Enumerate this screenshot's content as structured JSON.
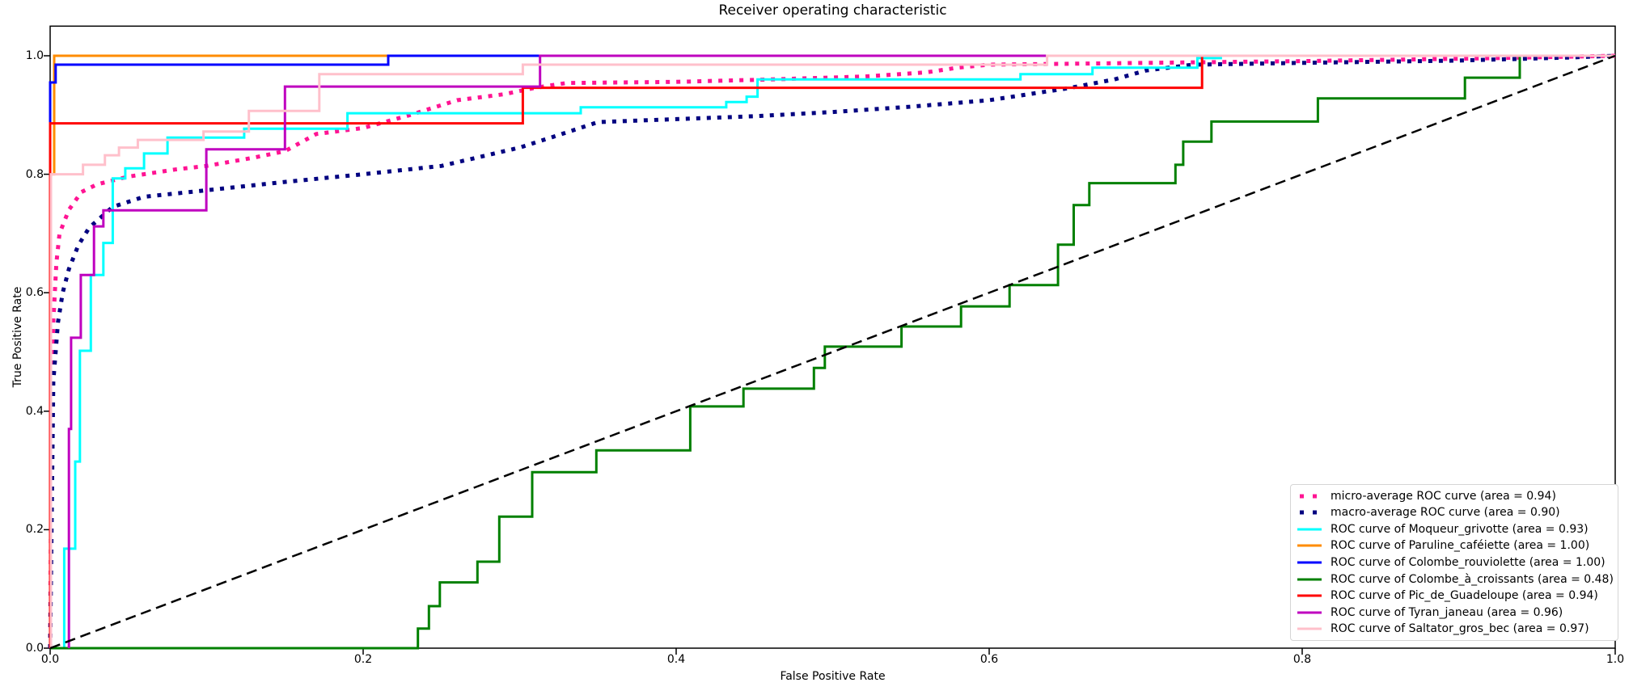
{
  "title": "Receiver operating characteristic",
  "axes": {
    "xlabel": "False Positive Rate",
    "ylabel": "True Positive Rate",
    "x_tick_labels": [
      "0.0",
      "0.2",
      "0.4",
      "0.6",
      "0.8",
      "1.0"
    ],
    "y_tick_labels": [
      "0.0",
      "0.2",
      "0.4",
      "0.6",
      "0.8",
      "1.0"
    ],
    "spine_color": "#000000"
  },
  "chart_data": {
    "type": "line",
    "title": "Receiver operating characteristic",
    "xlabel": "False Positive Rate",
    "ylabel": "True Positive Rate",
    "xlim": [
      0.0,
      1.0
    ],
    "ylim": [
      0.0,
      1.05
    ],
    "x_ticks": [
      0.0,
      0.2,
      0.4,
      0.6,
      0.8,
      1.0
    ],
    "y_ticks": [
      0.0,
      0.2,
      0.4,
      0.6,
      0.8,
      1.0
    ],
    "grid": false,
    "legend_position": "lower right",
    "series": [
      {
        "id": "micro-average-roc",
        "legend_label": "micro-average ROC curve (area = 0.94)",
        "area": 0.94,
        "color": "#FF1493",
        "style": "dotted",
        "width": 5,
        "points": [
          [
            0,
            0
          ],
          [
            0.001,
            0.4
          ],
          [
            0.002,
            0.55
          ],
          [
            0.004,
            0.65
          ],
          [
            0.006,
            0.7
          ],
          [
            0.009,
            0.72
          ],
          [
            0.012,
            0.74
          ],
          [
            0.02,
            0.77
          ],
          [
            0.03,
            0.783
          ],
          [
            0.05,
            0.796
          ],
          [
            0.08,
            0.808
          ],
          [
            0.1,
            0.814
          ],
          [
            0.13,
            0.828
          ],
          [
            0.15,
            0.839
          ],
          [
            0.17,
            0.868
          ],
          [
            0.2,
            0.878
          ],
          [
            0.23,
            0.9
          ],
          [
            0.26,
            0.925
          ],
          [
            0.29,
            0.935
          ],
          [
            0.31,
            0.946
          ],
          [
            0.33,
            0.954
          ],
          [
            0.4,
            0.956
          ],
          [
            0.46,
            0.96
          ],
          [
            0.52,
            0.965
          ],
          [
            0.56,
            0.972
          ],
          [
            0.58,
            0.98
          ],
          [
            0.6,
            0.985
          ],
          [
            0.7,
            0.988
          ],
          [
            0.8,
            0.991
          ],
          [
            0.9,
            0.995
          ],
          [
            1,
            1
          ]
        ]
      },
      {
        "id": "macro-average-roc",
        "legend_label": "macro-average ROC curve (area = 0.90)",
        "area": 0.9,
        "color": "#000080",
        "style": "dotted",
        "width": 5,
        "points": [
          [
            0,
            0
          ],
          [
            0.002,
            0.45
          ],
          [
            0.005,
            0.55
          ],
          [
            0.008,
            0.6
          ],
          [
            0.012,
            0.64
          ],
          [
            0.018,
            0.68
          ],
          [
            0.025,
            0.71
          ],
          [
            0.04,
            0.745
          ],
          [
            0.06,
            0.762
          ],
          [
            0.1,
            0.773
          ],
          [
            0.15,
            0.787
          ],
          [
            0.2,
            0.8
          ],
          [
            0.25,
            0.814
          ],
          [
            0.3,
            0.845
          ],
          [
            0.32,
            0.862
          ],
          [
            0.35,
            0.888
          ],
          [
            0.4,
            0.893
          ],
          [
            0.45,
            0.898
          ],
          [
            0.5,
            0.905
          ],
          [
            0.55,
            0.914
          ],
          [
            0.6,
            0.925
          ],
          [
            0.65,
            0.945
          ],
          [
            0.68,
            0.96
          ],
          [
            0.7,
            0.975
          ],
          [
            0.73,
            0.985
          ],
          [
            0.8,
            0.988
          ],
          [
            0.9,
            0.992
          ],
          [
            0.97,
            0.997
          ],
          [
            1,
            1
          ]
        ]
      },
      {
        "id": "roc-moqueur-grivotte",
        "legend_label": "ROC curve of Moqueur_grivotte (area = 0.93)",
        "area": 0.93,
        "color": "#00FFFF",
        "style": "solid",
        "width": 3,
        "points": [
          [
            0.009,
            0
          ],
          [
            0.009,
            0.168
          ],
          [
            0.016,
            0.168
          ],
          [
            0.016,
            0.315
          ],
          [
            0.019,
            0.315
          ],
          [
            0.019,
            0.502
          ],
          [
            0.026,
            0.502
          ],
          [
            0.026,
            0.63
          ],
          [
            0.034,
            0.63
          ],
          [
            0.034,
            0.684
          ],
          [
            0.04,
            0.684
          ],
          [
            0.04,
            0.793
          ],
          [
            0.048,
            0.793
          ],
          [
            0.048,
            0.81
          ],
          [
            0.06,
            0.81
          ],
          [
            0.06,
            0.835
          ],
          [
            0.075,
            0.835
          ],
          [
            0.075,
            0.862
          ],
          [
            0.124,
            0.862
          ],
          [
            0.124,
            0.877
          ],
          [
            0.19,
            0.877
          ],
          [
            0.19,
            0.903
          ],
          [
            0.339,
            0.903
          ],
          [
            0.339,
            0.913
          ],
          [
            0.432,
            0.913
          ],
          [
            0.432,
            0.922
          ],
          [
            0.445,
            0.922
          ],
          [
            0.445,
            0.931
          ],
          [
            0.452,
            0.931
          ],
          [
            0.452,
            0.96
          ],
          [
            0.62,
            0.96
          ],
          [
            0.62,
            0.969
          ],
          [
            0.666,
            0.969
          ],
          [
            0.666,
            0.98
          ],
          [
            0.733,
            0.98
          ],
          [
            0.733,
            0.996
          ],
          [
            0.748,
            0.996
          ],
          [
            0.748,
            1.0
          ],
          [
            1,
            1
          ]
        ]
      },
      {
        "id": "roc-paruline-cafeiette",
        "legend_label": "ROC curve of Paruline_caféiette (area = 1.00)",
        "area": 1.0,
        "color": "#FF8C00",
        "style": "solid",
        "width": 3,
        "points": [
          [
            0,
            0
          ],
          [
            0,
            0.8
          ],
          [
            0.0026,
            0.8
          ],
          [
            0.0026,
            1.0
          ],
          [
            1,
            1
          ]
        ]
      },
      {
        "id": "roc-colombe-rouviolette",
        "legend_label": "ROC curve of Colombe_rouviolette (area = 1.00)",
        "area": 1.0,
        "color": "#0000FF",
        "style": "solid",
        "width": 3,
        "points": [
          [
            0,
            0
          ],
          [
            0,
            0.955
          ],
          [
            0.0035,
            0.955
          ],
          [
            0.0035,
            0.985
          ],
          [
            0.216,
            0.985
          ],
          [
            0.216,
            1.0
          ],
          [
            1,
            1
          ]
        ]
      },
      {
        "id": "roc-colombe-a-croissants",
        "legend_label": "ROC curve of Colombe_à_croissants (area = 0.48)",
        "area": 0.48,
        "color": "#008000",
        "style": "solid",
        "width": 3,
        "points": [
          [
            0,
            0
          ],
          [
            0.235,
            0
          ],
          [
            0.235,
            0.033
          ],
          [
            0.242,
            0.033
          ],
          [
            0.242,
            0.071
          ],
          [
            0.249,
            0.071
          ],
          [
            0.249,
            0.111
          ],
          [
            0.273,
            0.111
          ],
          [
            0.273,
            0.146
          ],
          [
            0.287,
            0.146
          ],
          [
            0.287,
            0.222
          ],
          [
            0.308,
            0.222
          ],
          [
            0.308,
            0.297
          ],
          [
            0.349,
            0.297
          ],
          [
            0.349,
            0.334
          ],
          [
            0.409,
            0.334
          ],
          [
            0.409,
            0.408
          ],
          [
            0.443,
            0.408
          ],
          [
            0.443,
            0.438
          ],
          [
            0.488,
            0.438
          ],
          [
            0.488,
            0.473
          ],
          [
            0.495,
            0.473
          ],
          [
            0.495,
            0.509
          ],
          [
            0.544,
            0.509
          ],
          [
            0.544,
            0.543
          ],
          [
            0.582,
            0.543
          ],
          [
            0.582,
            0.577
          ],
          [
            0.613,
            0.577
          ],
          [
            0.613,
            0.613
          ],
          [
            0.644,
            0.613
          ],
          [
            0.644,
            0.681
          ],
          [
            0.654,
            0.681
          ],
          [
            0.654,
            0.748
          ],
          [
            0.664,
            0.748
          ],
          [
            0.664,
            0.785
          ],
          [
            0.719,
            0.785
          ],
          [
            0.719,
            0.816
          ],
          [
            0.724,
            0.816
          ],
          [
            0.724,
            0.855
          ],
          [
            0.742,
            0.855
          ],
          [
            0.742,
            0.889
          ],
          [
            0.81,
            0.889
          ],
          [
            0.81,
            0.928
          ],
          [
            0.904,
            0.928
          ],
          [
            0.904,
            0.963
          ],
          [
            0.939,
            0.963
          ],
          [
            0.939,
            1.0
          ],
          [
            1,
            1
          ]
        ]
      },
      {
        "id": "roc-pic-de-guadeloupe",
        "legend_label": "ROC curve of Pic_de_Guadeloupe (area = 0.94)",
        "area": 0.94,
        "color": "#FF0000",
        "style": "solid",
        "width": 3,
        "points": [
          [
            0,
            0
          ],
          [
            0,
            0.886
          ],
          [
            0.302,
            0.886
          ],
          [
            0.302,
            0.946
          ],
          [
            0.736,
            0.946
          ],
          [
            0.736,
            1.0
          ],
          [
            1,
            1
          ]
        ]
      },
      {
        "id": "roc-tyran-janeau",
        "legend_label": "ROC curve of Tyran_janeau (area = 0.96)",
        "area": 0.96,
        "color": "#BF00BF",
        "style": "solid",
        "width": 3,
        "points": [
          [
            0.012,
            0
          ],
          [
            0.012,
            0.37
          ],
          [
            0.0134,
            0.37
          ],
          [
            0.0134,
            0.524
          ],
          [
            0.0196,
            0.524
          ],
          [
            0.0196,
            0.63
          ],
          [
            0.028,
            0.63
          ],
          [
            0.028,
            0.712
          ],
          [
            0.034,
            0.712
          ],
          [
            0.034,
            0.739
          ],
          [
            0.0998,
            0.739
          ],
          [
            0.0998,
            0.842
          ],
          [
            0.15,
            0.842
          ],
          [
            0.15,
            0.948
          ],
          [
            0.313,
            0.948
          ],
          [
            0.313,
            1.0
          ],
          [
            1,
            1
          ]
        ]
      },
      {
        "id": "roc-saltator-gros-bec",
        "legend_label": "ROC curve of Saltator_gros_bec (area = 0.97)",
        "area": 0.97,
        "color": "#FFC0CB",
        "style": "solid",
        "width": 3,
        "points": [
          [
            0.0005,
            0
          ],
          [
            0.0005,
            0.8
          ],
          [
            0.021,
            0.8
          ],
          [
            0.021,
            0.816
          ],
          [
            0.035,
            0.816
          ],
          [
            0.035,
            0.832
          ],
          [
            0.044,
            0.832
          ],
          [
            0.044,
            0.845
          ],
          [
            0.056,
            0.845
          ],
          [
            0.056,
            0.858
          ],
          [
            0.098,
            0.858
          ],
          [
            0.098,
            0.872
          ],
          [
            0.127,
            0.872
          ],
          [
            0.127,
            0.907
          ],
          [
            0.172,
            0.907
          ],
          [
            0.172,
            0.969
          ],
          [
            0.302,
            0.969
          ],
          [
            0.302,
            0.985
          ],
          [
            0.637,
            0.985
          ],
          [
            0.637,
            1.0
          ],
          [
            1,
            1
          ]
        ]
      },
      {
        "id": "chance-diagonal",
        "legend_label": null,
        "color": "#000000",
        "style": "dashed",
        "width": 2.5,
        "points": [
          [
            0,
            0
          ],
          [
            1,
            1
          ]
        ]
      }
    ]
  }
}
